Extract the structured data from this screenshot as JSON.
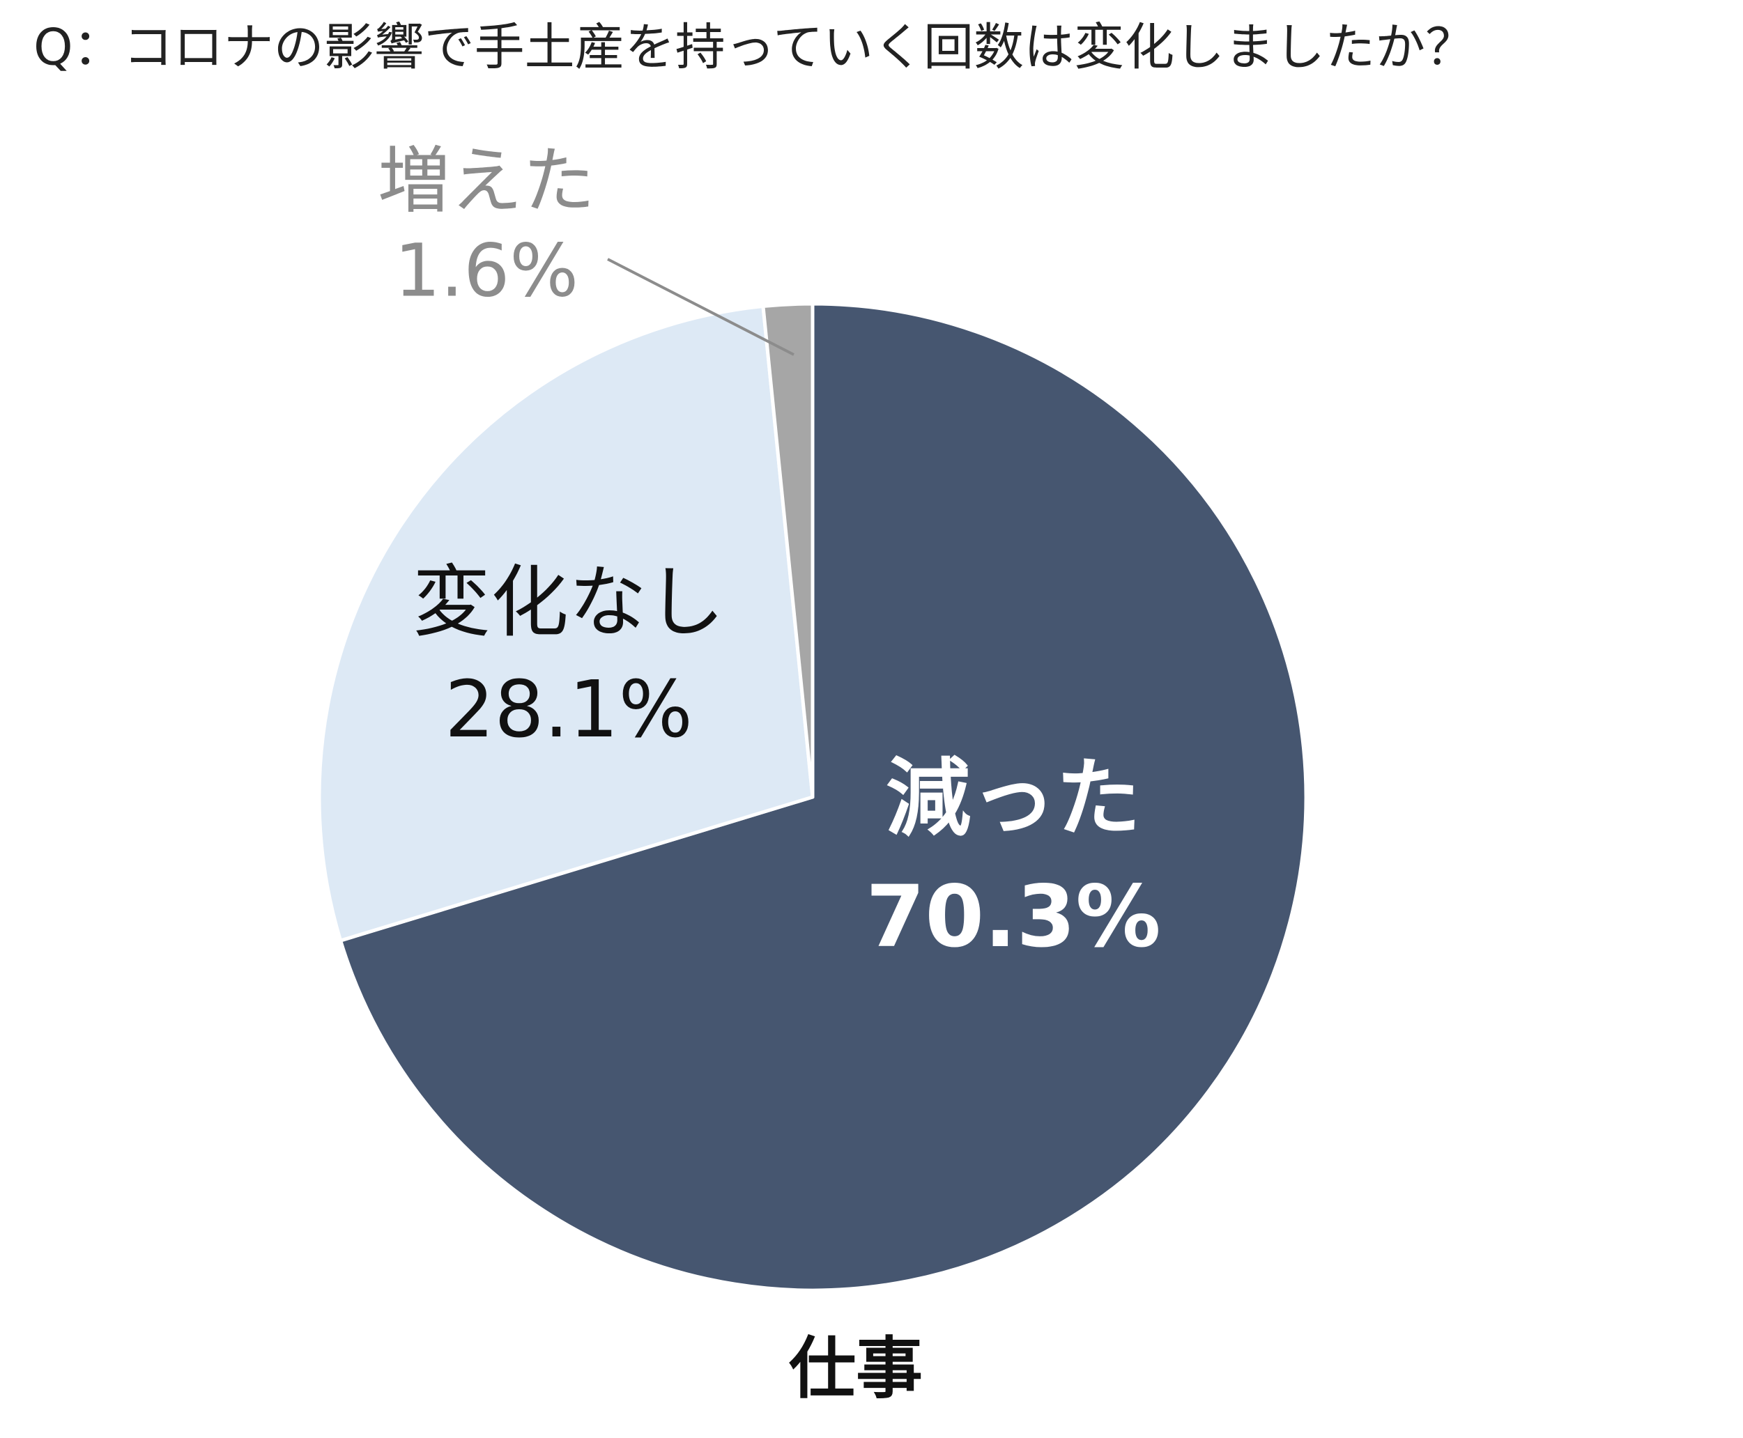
{
  "chart_data": {
    "type": "pie",
    "title": "Q：コロナの影響で手土産を持っていく回数は変化しましたか？",
    "subtitle": "仕事",
    "categories": [
      "減った",
      "変化なし",
      "増えた"
    ],
    "values": [
      70.3,
      28.1,
      1.6
    ],
    "value_labels": [
      "70.3%",
      "28.1%",
      "1.6%"
    ],
    "colors": [
      "#465670",
      "#dde9f5",
      "#a6a6a6"
    ]
  }
}
